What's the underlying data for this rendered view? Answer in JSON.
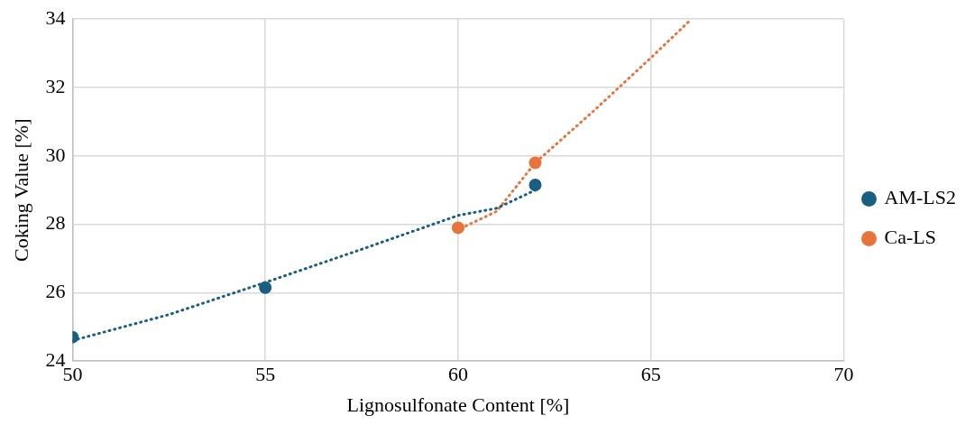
{
  "chart_data": {
    "type": "scatter",
    "xlabel": "Lignosulfonate Content [%]",
    "ylabel": "Coking Value [%]",
    "xlim": [
      50,
      70
    ],
    "xticks": [
      50,
      55,
      60,
      65,
      70
    ],
    "ylim": [
      24,
      34
    ],
    "yticks": [
      24,
      26,
      28,
      30,
      32,
      34
    ],
    "grid": true,
    "legend": "right",
    "marker": "circle",
    "series": [
      {
        "name": "AM-LS2",
        "color": "#1a5f82",
        "x": [
          50,
          55,
          62
        ],
        "values": [
          24.7,
          26.15,
          29.15
        ]
      },
      {
        "name": "Ca-LS",
        "color": "#e8743b",
        "x": [
          60,
          62
        ],
        "values": [
          27.9,
          29.8
        ]
      },
      {
        "type": "line",
        "color": "#1a5f82",
        "marker": "none",
        "line_style": "dotted",
        "x": [
          50,
          52.5,
          55,
          57.5,
          60,
          61,
          62
        ],
        "values": [
          24.6,
          25.36,
          26.3,
          27.27,
          28.26,
          28.47,
          29.0
        ]
      },
      {
        "type": "line",
        "color": "#e8743b",
        "marker": "none",
        "line_style": "dotted",
        "x": [
          60.2,
          61,
          62,
          63.5,
          65,
          66.05
        ],
        "values": [
          27.95,
          28.38,
          29.8,
          31.3,
          32.87,
          34
        ]
      }
    ]
  }
}
